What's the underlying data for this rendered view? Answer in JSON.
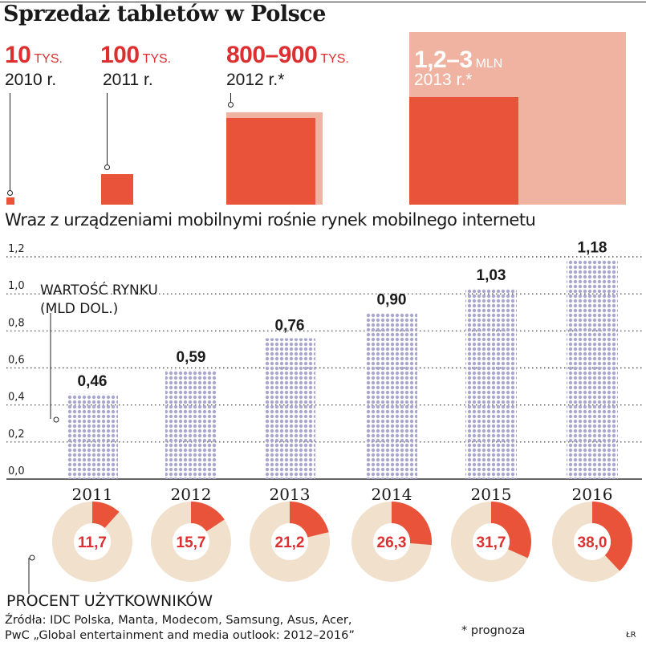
{
  "title": "Sprzedaż tabletów w Polsce",
  "sales": [
    {
      "value": "10",
      "unit": "TYS.",
      "year": "2010 r.",
      "size": 1
    },
    {
      "value": "100",
      "unit": "TYS.",
      "year": "2011 r.",
      "size": 2
    },
    {
      "value": "800–900",
      "unit": "TYS.",
      "year": "2012 r.*",
      "size": 3
    },
    {
      "value": "1,2–3",
      "unit": "MLN",
      "year": "2013 r.*",
      "size": 4
    }
  ],
  "subtitle": "Wraz z urządzeniami mobilnymi rośnie rynek mobilnego internetu",
  "market_label_1": "WARTOŚĆ RYNKU",
  "market_label_2": "(MLD DOL.)",
  "users_label": "PROCENT UŻYTKOWNIKÓW",
  "sources_1": "Źródła: IDC Polska, Manta, Modecom, Samsung, Asus, Acer,",
  "sources_2": "PwC „Global entertainment and media outlook: 2012–2016”",
  "note": "* prognoza",
  "credit": "ŁR",
  "colors": {
    "accent": "#dd2f2f",
    "bar_fill": "#e8533a",
    "bar_light": "#f0b3a2",
    "ring": "#f0e0cc",
    "dots": "#a9a6cf"
  },
  "chart_data": [
    {
      "type": "bar",
      "title": "Wraz z urządzeniami mobilnymi rośnie rynek mobilnego internetu",
      "ylabel": "WARTOŚĆ RYNKU (MLD DOL.)",
      "categories": [
        "2011",
        "2012",
        "2013",
        "2014",
        "2015",
        "2016"
      ],
      "values": [
        0.46,
        0.59,
        0.76,
        0.9,
        1.03,
        1.18
      ],
      "value_labels": [
        "0,46",
        "0,59",
        "0,76",
        "0,90",
        "1,03",
        "1,18"
      ],
      "ylim": [
        0,
        1.2
      ],
      "yticks": [
        "0,0",
        "0,2",
        "0,4",
        "0,6",
        "0,8",
        "1,0",
        "1,2"
      ],
      "grid": true
    },
    {
      "type": "pie",
      "title": "PROCENT UŻYTKOWNIKÓW",
      "categories": [
        "2011",
        "2012",
        "2013",
        "2014",
        "2015",
        "2016"
      ],
      "values": [
        11.7,
        15.7,
        21.2,
        26.3,
        31.7,
        38.0
      ],
      "value_labels": [
        "11,7",
        "15,7",
        "21,2",
        "26,3",
        "31,7",
        "38,0"
      ]
    }
  ]
}
